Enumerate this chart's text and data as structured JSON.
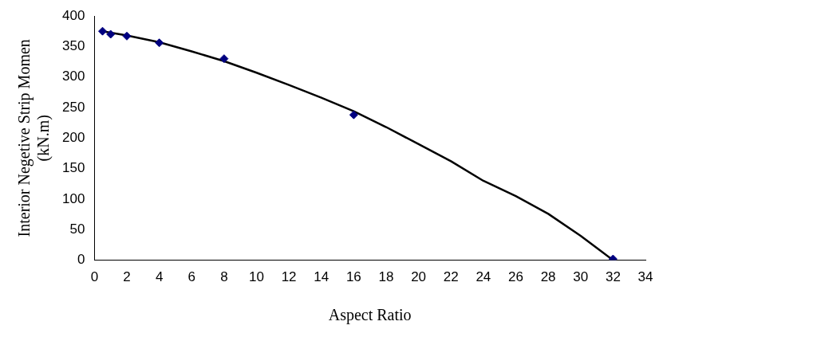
{
  "chart_data": {
    "type": "scatter",
    "xlabel": "Aspect Ratio",
    "ylabel": "Interior Negetive Strip Momen\n(kN.m)",
    "xlim": [
      0,
      34
    ],
    "xticks": [
      0,
      2,
      4,
      6,
      8,
      10,
      12,
      14,
      16,
      18,
      20,
      22,
      24,
      26,
      28,
      30,
      32,
      34
    ],
    "ylim": [
      0,
      400
    ],
    "yticks": [
      0,
      50,
      100,
      150,
      200,
      250,
      300,
      350,
      400
    ],
    "grid": false,
    "legend": false,
    "series": [
      {
        "marker": "diamond",
        "color": "#000080",
        "x": [
          0.5,
          1,
          2,
          4,
          8,
          16,
          32
        ],
        "values": [
          375,
          370,
          367,
          356,
          330,
          238,
          2
        ]
      },
      {
        "type": "line",
        "marker": "none",
        "line_style": "solid",
        "color": "#000000",
        "x": [
          0.5,
          2,
          4,
          6,
          8,
          10,
          12,
          14,
          16,
          18,
          20,
          22,
          24,
          26,
          28,
          30,
          31,
          32
        ],
        "values": [
          375,
          368,
          357,
          342,
          326,
          307,
          287,
          266,
          244,
          218,
          190,
          162,
          130,
          105,
          76,
          40,
          20,
          0
        ]
      }
    ]
  }
}
